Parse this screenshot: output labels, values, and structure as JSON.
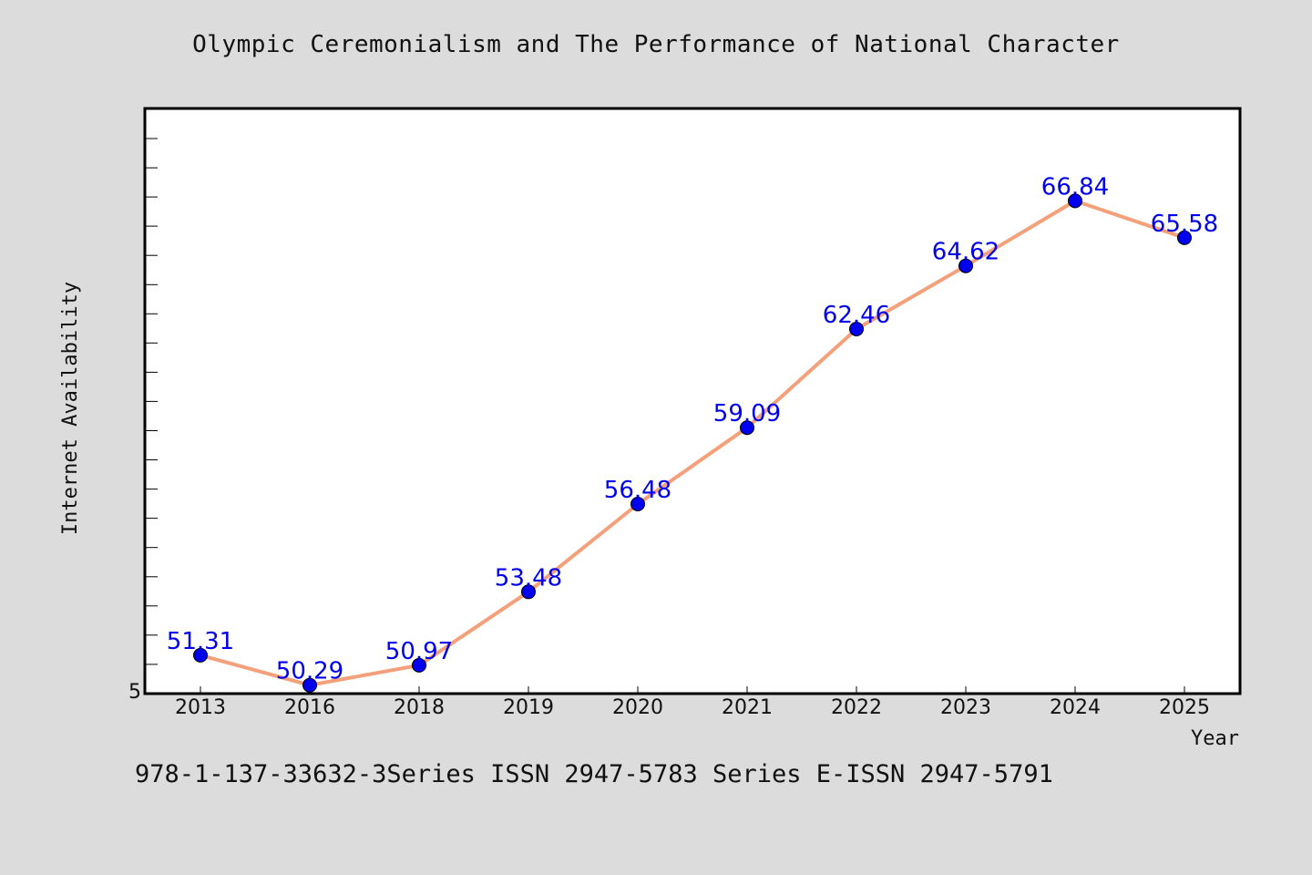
{
  "chart_data": {
    "type": "line",
    "title": "Olympic Ceremonialism and The Performance of National Character",
    "xlabel": "Year",
    "ylabel": "Internet Availability",
    "categories": [
      "2013",
      "2016",
      "2018",
      "2019",
      "2020",
      "2021",
      "2022",
      "2023",
      "2024",
      "2025"
    ],
    "series": [
      {
        "values": [
          51.31,
          50.29,
          50.97,
          53.48,
          56.48,
          59.09,
          62.46,
          64.62,
          66.84,
          65.58
        ],
        "labels": [
          "51.31",
          "50.29",
          "50.97",
          "53.48",
          "56.48",
          "59.09",
          "62.46",
          "64.62",
          "66.84",
          "65.58"
        ]
      }
    ],
    "ylim": [
      50,
      70
    ],
    "y_tick_labels": [
      "5"
    ],
    "grid": false,
    "colors": {
      "line": "#f4a07a",
      "marker": "#0000ee",
      "data_label": "#0000ee",
      "background": "#dcdcdc",
      "plot_background": "#ffffff"
    }
  },
  "footer": {
    "text": "978-1-137-33632-3Series ISSN 2947-5783 Series E-ISSN 2947-5791"
  }
}
